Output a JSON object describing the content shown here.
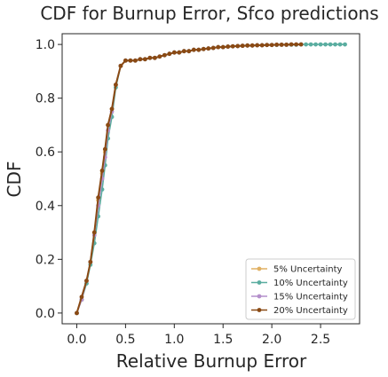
{
  "chart_data": {
    "type": "line",
    "title": "CDF for Burnup Error, Sfco predictions",
    "xlabel": "Relative Burnup Error",
    "ylabel": "CDF",
    "xlim": [
      -0.15,
      2.9
    ],
    "ylim": [
      -0.04,
      1.04
    ],
    "xticks": [
      0.0,
      0.5,
      1.0,
      1.5,
      2.0,
      2.5
    ],
    "xtick_labels": [
      "0.0",
      "0.5",
      "1.0",
      "1.5",
      "2.0",
      "2.5"
    ],
    "yticks": [
      0.0,
      0.2,
      0.4,
      0.6,
      0.8,
      1.0
    ],
    "ytick_labels": [
      "0.0",
      "0.2",
      "0.4",
      "0.6",
      "0.8",
      "1.0"
    ],
    "grid": false,
    "legend_position": "bottom-right",
    "series": [
      {
        "name": "5% Uncertainty",
        "color": "#e0b062",
        "x": [
          0.0,
          0.05,
          0.1,
          0.14,
          0.18,
          0.22,
          0.26,
          0.29,
          0.32,
          0.36,
          0.4,
          0.45,
          0.5,
          0.55,
          0.6,
          0.65,
          0.7,
          0.75,
          0.8,
          0.85,
          0.9,
          0.95,
          1.0,
          1.05,
          1.1,
          1.15,
          1.2,
          1.25,
          1.3,
          1.35,
          1.4,
          1.45,
          1.5,
          1.55,
          1.6,
          1.65,
          1.7,
          1.75,
          1.8,
          1.85,
          1.9,
          1.95,
          2.0,
          2.05,
          2.1,
          2.15,
          2.2,
          2.25,
          2.3
        ],
        "y": [
          0.0,
          0.05,
          0.12,
          0.19,
          0.3,
          0.42,
          0.52,
          0.6,
          0.7,
          0.76,
          0.85,
          0.92,
          0.94,
          0.94,
          0.94,
          0.945,
          0.945,
          0.95,
          0.95,
          0.955,
          0.96,
          0.965,
          0.97,
          0.97,
          0.975,
          0.975,
          0.98,
          0.98,
          0.983,
          0.985,
          0.987,
          0.99,
          0.99,
          0.992,
          0.993,
          0.994,
          0.995,
          0.996,
          0.996,
          0.997,
          0.997,
          0.998,
          0.998,
          0.999,
          0.999,
          0.999,
          1.0,
          1.0,
          1.0
        ]
      },
      {
        "name": "10% Uncertainty",
        "color": "#5aada0",
        "x": [
          0.0,
          0.05,
          0.1,
          0.14,
          0.18,
          0.22,
          0.26,
          0.29,
          0.32,
          0.36,
          0.4,
          0.45,
          0.5,
          0.55,
          0.6,
          0.65,
          0.7,
          0.75,
          0.8,
          0.85,
          0.9,
          0.95,
          1.0,
          1.05,
          1.1,
          1.15,
          1.2,
          1.25,
          1.3,
          1.35,
          1.4,
          1.45,
          1.5,
          1.55,
          1.6,
          1.65,
          1.7,
          1.75,
          1.8,
          1.85,
          1.9,
          1.95,
          2.0,
          2.05,
          2.1,
          2.15,
          2.2,
          2.25,
          2.3,
          2.35,
          2.4,
          2.45,
          2.5,
          2.55,
          2.6,
          2.65,
          2.7,
          2.75
        ],
        "y": [
          0.0,
          0.05,
          0.11,
          0.18,
          0.26,
          0.36,
          0.46,
          0.55,
          0.65,
          0.73,
          0.84,
          0.92,
          0.94,
          0.94,
          0.94,
          0.945,
          0.945,
          0.95,
          0.95,
          0.955,
          0.96,
          0.965,
          0.97,
          0.97,
          0.975,
          0.975,
          0.98,
          0.98,
          0.983,
          0.985,
          0.987,
          0.99,
          0.99,
          0.992,
          0.993,
          0.994,
          0.995,
          0.996,
          0.996,
          0.997,
          0.997,
          0.998,
          0.998,
          0.998,
          0.999,
          0.999,
          0.999,
          0.999,
          1.0,
          1.0,
          1.0,
          1.0,
          1.0,
          1.0,
          1.0,
          1.0,
          1.0,
          1.0
        ]
      },
      {
        "name": "15% Uncertainty",
        "color": "#b48fcb",
        "x": [
          0.0,
          0.05,
          0.1,
          0.14,
          0.18,
          0.22,
          0.26,
          0.29,
          0.32,
          0.36,
          0.4,
          0.45,
          0.5,
          0.55,
          0.6,
          0.65,
          0.7,
          0.75,
          0.8,
          0.85,
          0.9,
          0.95,
          1.0,
          1.05,
          1.1,
          1.15,
          1.2,
          1.25,
          1.3,
          1.35,
          1.4,
          1.45,
          1.5,
          1.55,
          1.6,
          1.65,
          1.7,
          1.75,
          1.8,
          1.85,
          1.9,
          1.95,
          2.0,
          2.05,
          2.1,
          2.15,
          2.2,
          2.25,
          2.3
        ],
        "y": [
          0.0,
          0.05,
          0.12,
          0.19,
          0.29,
          0.4,
          0.5,
          0.58,
          0.68,
          0.75,
          0.85,
          0.92,
          0.94,
          0.94,
          0.94,
          0.945,
          0.945,
          0.95,
          0.95,
          0.955,
          0.96,
          0.965,
          0.97,
          0.97,
          0.975,
          0.975,
          0.98,
          0.98,
          0.983,
          0.985,
          0.987,
          0.99,
          0.99,
          0.992,
          0.993,
          0.994,
          0.995,
          0.996,
          0.996,
          0.997,
          0.997,
          0.998,
          0.998,
          0.999,
          0.999,
          0.999,
          1.0,
          1.0,
          1.0
        ]
      },
      {
        "name": "20% Uncertainty",
        "color": "#8a4a14",
        "x": [
          0.0,
          0.05,
          0.1,
          0.14,
          0.18,
          0.22,
          0.26,
          0.29,
          0.32,
          0.36,
          0.4,
          0.45,
          0.5,
          0.55,
          0.6,
          0.65,
          0.7,
          0.75,
          0.8,
          0.85,
          0.9,
          0.95,
          1.0,
          1.05,
          1.1,
          1.15,
          1.2,
          1.25,
          1.3,
          1.35,
          1.4,
          1.45,
          1.5,
          1.55,
          1.6,
          1.65,
          1.7,
          1.75,
          1.8,
          1.85,
          1.9,
          1.95,
          2.0,
          2.05,
          2.1,
          2.15,
          2.2,
          2.25,
          2.3
        ],
        "y": [
          0.0,
          0.06,
          0.12,
          0.19,
          0.3,
          0.43,
          0.53,
          0.61,
          0.7,
          0.76,
          0.85,
          0.92,
          0.94,
          0.94,
          0.94,
          0.945,
          0.945,
          0.95,
          0.95,
          0.955,
          0.96,
          0.965,
          0.97,
          0.97,
          0.975,
          0.975,
          0.98,
          0.98,
          0.983,
          0.985,
          0.987,
          0.99,
          0.99,
          0.992,
          0.993,
          0.994,
          0.995,
          0.996,
          0.996,
          0.997,
          0.997,
          0.998,
          0.998,
          0.999,
          0.999,
          0.999,
          1.0,
          1.0,
          1.0
        ]
      }
    ]
  }
}
